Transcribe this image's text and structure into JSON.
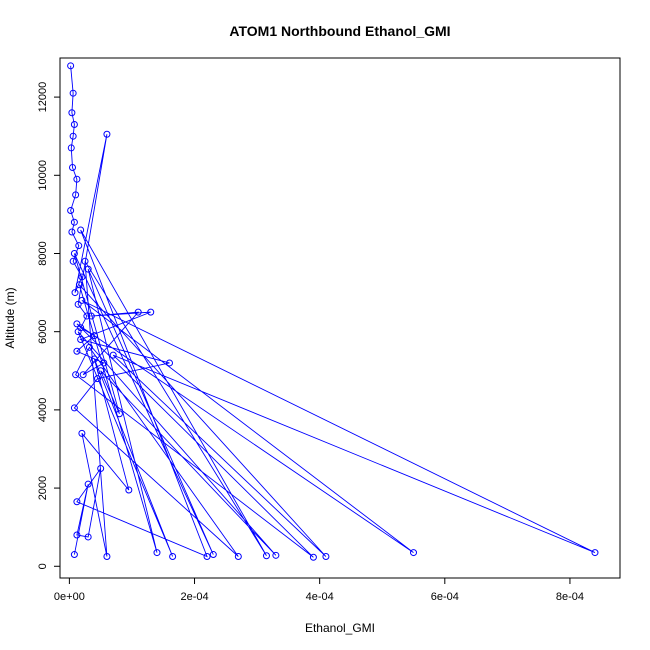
{
  "chart_data": {
    "type": "line",
    "title": "ATOM1 Northbound Ethanol_GMI",
    "xlabel": "Ethanol_GMI",
    "ylabel": "Altitude (m)",
    "xlim": [
      -1.5e-05,
      0.00088
    ],
    "ylim": [
      -300,
      13000
    ],
    "x_ticks": [
      0,
      0.0002,
      0.0004,
      0.0006,
      0.0008
    ],
    "x_tick_labels": [
      "0e+00",
      "2e-04",
      "4e-04",
      "6e-04",
      "8e-04"
    ],
    "y_ticks": [
      0,
      2000,
      4000,
      6000,
      8000,
      10000,
      12000
    ],
    "y_tick_labels": [
      "0",
      "2000",
      "4000",
      "6000",
      "8000",
      "10000",
      "12000"
    ],
    "line_color": "#0000ff",
    "series": [
      {
        "x": [
          2e-06,
          6e-06,
          4e-06,
          8e-06,
          6e-06,
          3e-06,
          5e-06,
          1.2e-05,
          1e-05,
          2e-06,
          8e-06,
          4e-06,
          1.5e-05,
          6e-06,
          2e-05,
          9e-06,
          6e-05,
          1.4e-05,
          2.8e-05,
          1.8e-05,
          4e-05,
          1.2e-05,
          5.5e-05,
          2.2e-05,
          0.00011,
          3.5e-05,
          0.00013,
          1.8e-05,
          0.00016,
          4.5e-05,
          8e-06,
          0.00027,
          3.2e-05,
          1e-05,
          0.00039,
          1.2e-05,
          0.00055,
          2e-05,
          0.00084,
          7e-05,
          0.00041,
          1.6e-05,
          0.00014,
          3e-05,
          0.00023,
          8e-06,
          8e-05,
          5e-05,
          0.00033,
          1.4e-05,
          0.000165,
          4e-05,
          9.5e-05,
          2e-05,
          6e-05,
          2.5e-05,
          0.000315,
          1.8e-05,
          0.00022,
          1.2e-05,
          5e-05,
          3e-05,
          1.2e-05,
          3e-05,
          8e-06
        ],
        "y": [
          12800,
          12100,
          11600,
          11300,
          11000,
          10700,
          10200,
          9900,
          9500,
          9100,
          8800,
          8550,
          8200,
          7800,
          7400,
          7000,
          11050,
          6700,
          6400,
          6100,
          5900,
          5500,
          5200,
          4900,
          6500,
          6400,
          6500,
          5800,
          5200,
          4800,
          4050,
          250,
          5600,
          4900,
          230,
          6200,
          350,
          6800,
          350,
          5400,
          250,
          7200,
          350,
          7600,
          300,
          8000,
          3900,
          5000,
          280,
          6000,
          250,
          5300,
          1950,
          3400,
          250,
          7800,
          270,
          8600,
          250,
          1650,
          2500,
          750,
          800,
          2100,
          300
        ]
      }
    ]
  }
}
